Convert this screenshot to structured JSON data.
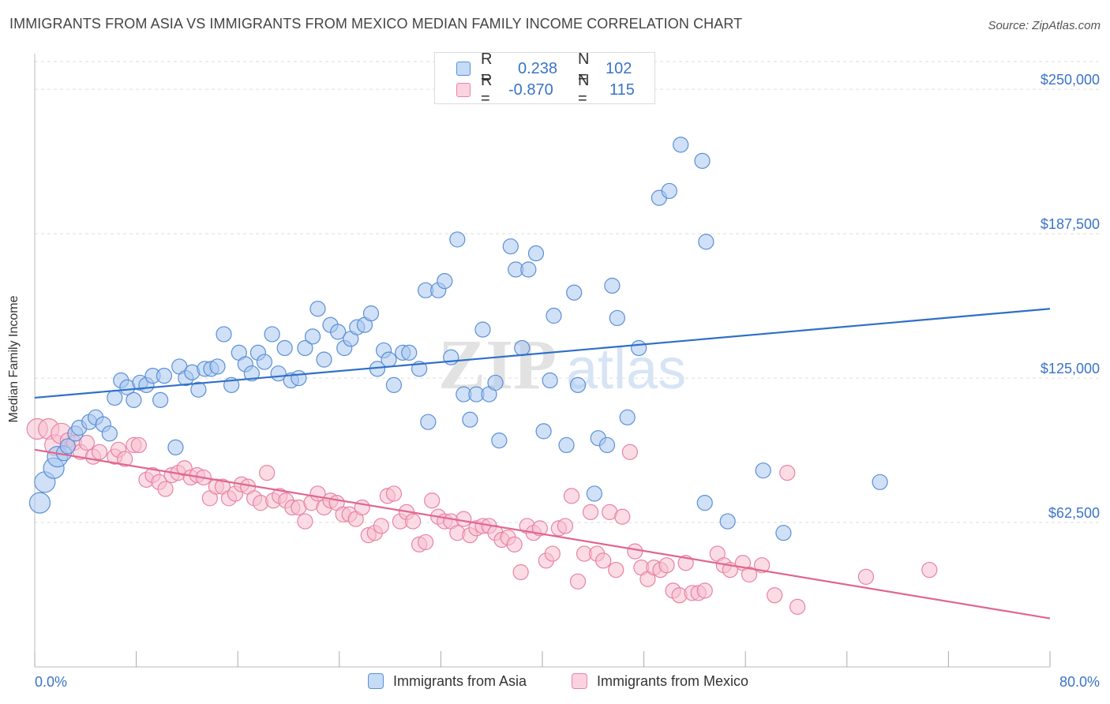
{
  "title": "IMMIGRANTS FROM ASIA VS IMMIGRANTS FROM MEXICO MEDIAN FAMILY INCOME CORRELATION CHART",
  "source": "Source: ZipAtlas.com",
  "watermark": {
    "zip": "ZIP",
    "atlas": "atlas"
  },
  "legend": {
    "r_label": "R =",
    "n_label": "N =",
    "asia": {
      "r": "0.238",
      "n": "102"
    },
    "mexico": {
      "r": "-0.870",
      "n": "115"
    }
  },
  "colors": {
    "asia_fill": "#a9c8f0",
    "asia_stroke": "#5b8fd6",
    "asia_line": "#2f6fc8",
    "mexico_fill": "#f7bfd0",
    "mexico_stroke": "#e882a6",
    "mexico_line": "#e06690",
    "tick_label": "#3a73c8",
    "grid": "#dddddd"
  },
  "chart_data": {
    "type": "scatter",
    "xlabel": "",
    "ylabel": "Median Family Income",
    "xlim": [
      0,
      80
    ],
    "ylim": [
      0,
      262000
    ],
    "x_tick_labels": {
      "min": "0.0%",
      "max": "80.0%"
    },
    "y_ticks": [
      {
        "value": 62500,
        "label": "$62,500"
      },
      {
        "value": 125000,
        "label": "$125,000"
      },
      {
        "value": 187500,
        "label": "$187,500"
      },
      {
        "value": 250000,
        "label": "$250,000"
      }
    ],
    "grid": true,
    "series": [
      {
        "name": "Immigrants from Asia",
        "trend": {
          "x": [
            0,
            80
          ],
          "y": [
            116500,
            155000
          ]
        },
        "points": [
          [
            0.4,
            71000
          ],
          [
            0.8,
            80000
          ],
          [
            1.5,
            86000
          ],
          [
            1.8,
            91000
          ],
          [
            2.3,
            92500
          ],
          [
            2.6,
            95500
          ],
          [
            3.2,
            101000
          ],
          [
            3.5,
            103500
          ],
          [
            4.3,
            106000
          ],
          [
            4.8,
            108000
          ],
          [
            5.4,
            105000
          ],
          [
            5.9,
            101000
          ],
          [
            6.3,
            116500
          ],
          [
            6.8,
            124000
          ],
          [
            7.3,
            121000
          ],
          [
            7.8,
            115500
          ],
          [
            8.3,
            123000
          ],
          [
            8.8,
            122000
          ],
          [
            9.3,
            126000
          ],
          [
            9.9,
            115500
          ],
          [
            10.2,
            126000
          ],
          [
            11.1,
            95000
          ],
          [
            11.4,
            130000
          ],
          [
            11.9,
            125000
          ],
          [
            12.4,
            127500
          ],
          [
            12.9,
            120000
          ],
          [
            13.4,
            129000
          ],
          [
            13.9,
            129000
          ],
          [
            14.4,
            130000
          ],
          [
            14.9,
            144000
          ],
          [
            15.5,
            122000
          ],
          [
            16.1,
            136000
          ],
          [
            16.6,
            131000
          ],
          [
            17.1,
            127000
          ],
          [
            17.6,
            136000
          ],
          [
            18.1,
            132000
          ],
          [
            18.7,
            144000
          ],
          [
            19.2,
            127000
          ],
          [
            19.7,
            138000
          ],
          [
            20.2,
            124000
          ],
          [
            20.8,
            125000
          ],
          [
            21.3,
            138000
          ],
          [
            21.9,
            143000
          ],
          [
            22.3,
            155000
          ],
          [
            22.8,
            133000
          ],
          [
            23.3,
            148000
          ],
          [
            23.9,
            145000
          ],
          [
            24.4,
            138000
          ],
          [
            24.9,
            142000
          ],
          [
            25.4,
            147000
          ],
          [
            26.0,
            148000
          ],
          [
            26.5,
            153000
          ],
          [
            27.0,
            129000
          ],
          [
            27.5,
            137000
          ],
          [
            27.9,
            133000
          ],
          [
            28.3,
            122000
          ],
          [
            29.0,
            136000
          ],
          [
            29.5,
            136000
          ],
          [
            30.3,
            129000
          ],
          [
            30.8,
            163000
          ],
          [
            31.0,
            106000
          ],
          [
            31.8,
            163000
          ],
          [
            32.3,
            167000
          ],
          [
            32.8,
            134000
          ],
          [
            33.3,
            185000
          ],
          [
            33.8,
            118000
          ],
          [
            34.3,
            107000
          ],
          [
            34.8,
            118000
          ],
          [
            35.3,
            146000
          ],
          [
            35.8,
            118000
          ],
          [
            36.3,
            123000
          ],
          [
            36.6,
            98000
          ],
          [
            37.5,
            182000
          ],
          [
            37.9,
            172000
          ],
          [
            38.4,
            138000
          ],
          [
            38.9,
            172000
          ],
          [
            39.5,
            179000
          ],
          [
            40.1,
            102000
          ],
          [
            40.6,
            124000
          ],
          [
            40.9,
            152000
          ],
          [
            41.9,
            96000
          ],
          [
            42.5,
            162000
          ],
          [
            42.8,
            122000
          ],
          [
            44.1,
            75000
          ],
          [
            44.4,
            99000
          ],
          [
            45.1,
            96000
          ],
          [
            45.5,
            165000
          ],
          [
            45.9,
            151000
          ],
          [
            46.7,
            108000
          ],
          [
            47.6,
            138000
          ],
          [
            49.2,
            203000
          ],
          [
            50.0,
            206000
          ],
          [
            50.9,
            226000
          ],
          [
            52.6,
            219000
          ],
          [
            52.8,
            71000
          ],
          [
            52.9,
            184000
          ],
          [
            54.6,
            63000
          ],
          [
            57.4,
            85000
          ],
          [
            59.0,
            58000
          ],
          [
            66.6,
            80000
          ]
        ]
      },
      {
        "name": "Immigrants from Mexico",
        "trend": {
          "x": [
            0,
            80
          ],
          "y": [
            94000,
            21000
          ]
        },
        "points": [
          [
            0.2,
            103000
          ],
          [
            1.1,
            103000
          ],
          [
            1.6,
            96000
          ],
          [
            2.1,
            101000
          ],
          [
            2.6,
            98000
          ],
          [
            3.1,
            97000
          ],
          [
            3.6,
            93000
          ],
          [
            4.1,
            97000
          ],
          [
            4.6,
            91000
          ],
          [
            5.1,
            93000
          ],
          [
            6.3,
            91000
          ],
          [
            6.6,
            94000
          ],
          [
            7.1,
            90000
          ],
          [
            7.8,
            96000
          ],
          [
            8.2,
            96000
          ],
          [
            8.8,
            81000
          ],
          [
            9.3,
            83000
          ],
          [
            9.8,
            80000
          ],
          [
            10.3,
            77000
          ],
          [
            10.8,
            83000
          ],
          [
            11.3,
            84000
          ],
          [
            11.8,
            86000
          ],
          [
            12.3,
            82000
          ],
          [
            12.8,
            83000
          ],
          [
            13.3,
            82000
          ],
          [
            13.8,
            73000
          ],
          [
            14.3,
            78000
          ],
          [
            14.8,
            78000
          ],
          [
            15.3,
            73000
          ],
          [
            15.8,
            75000
          ],
          [
            16.3,
            79000
          ],
          [
            16.8,
            78000
          ],
          [
            17.3,
            73000
          ],
          [
            17.8,
            71000
          ],
          [
            18.3,
            84000
          ],
          [
            18.8,
            72000
          ],
          [
            19.3,
            74000
          ],
          [
            19.8,
            72000
          ],
          [
            20.3,
            69000
          ],
          [
            20.8,
            69000
          ],
          [
            21.3,
            63000
          ],
          [
            21.8,
            71000
          ],
          [
            22.3,
            75000
          ],
          [
            22.8,
            69000
          ],
          [
            23.3,
            72000
          ],
          [
            23.8,
            71000
          ],
          [
            24.3,
            66000
          ],
          [
            24.8,
            66000
          ],
          [
            25.3,
            64000
          ],
          [
            25.8,
            69000
          ],
          [
            26.3,
            57000
          ],
          [
            26.8,
            58000
          ],
          [
            27.3,
            61000
          ],
          [
            27.8,
            74000
          ],
          [
            28.3,
            75000
          ],
          [
            28.8,
            63000
          ],
          [
            29.3,
            67000
          ],
          [
            29.8,
            63000
          ],
          [
            30.3,
            53000
          ],
          [
            30.8,
            54000
          ],
          [
            31.3,
            72000
          ],
          [
            31.8,
            65000
          ],
          [
            32.3,
            63000
          ],
          [
            32.8,
            63000
          ],
          [
            33.3,
            58000
          ],
          [
            33.8,
            64000
          ],
          [
            34.3,
            57000
          ],
          [
            34.8,
            60000
          ],
          [
            35.3,
            61000
          ],
          [
            35.8,
            61000
          ],
          [
            36.3,
            58000
          ],
          [
            36.8,
            55000
          ],
          [
            37.3,
            56000
          ],
          [
            37.8,
            53000
          ],
          [
            38.3,
            41000
          ],
          [
            38.8,
            61000
          ],
          [
            39.3,
            58000
          ],
          [
            39.8,
            60000
          ],
          [
            40.3,
            46000
          ],
          [
            40.8,
            49000
          ],
          [
            41.3,
            60000
          ],
          [
            41.8,
            61000
          ],
          [
            42.3,
            74000
          ],
          [
            42.8,
            37000
          ],
          [
            43.3,
            49000
          ],
          [
            43.8,
            67000
          ],
          [
            44.3,
            49000
          ],
          [
            44.8,
            46000
          ],
          [
            45.3,
            67000
          ],
          [
            45.8,
            42000
          ],
          [
            46.3,
            65000
          ],
          [
            46.9,
            93000
          ],
          [
            47.3,
            50000
          ],
          [
            47.8,
            43000
          ],
          [
            48.3,
            38000
          ],
          [
            48.8,
            43000
          ],
          [
            49.3,
            42000
          ],
          [
            49.8,
            44000
          ],
          [
            50.3,
            33000
          ],
          [
            50.8,
            31000
          ],
          [
            51.3,
            45000
          ],
          [
            51.8,
            32000
          ],
          [
            52.3,
            32000
          ],
          [
            52.8,
            33000
          ],
          [
            53.8,
            49000
          ],
          [
            54.3,
            44000
          ],
          [
            54.8,
            42000
          ],
          [
            55.8,
            45000
          ],
          [
            56.3,
            40000
          ],
          [
            57.3,
            44000
          ],
          [
            58.3,
            31000
          ],
          [
            59.3,
            84000
          ],
          [
            60.1,
            26000
          ],
          [
            65.5,
            39000
          ],
          [
            70.5,
            42000
          ]
        ]
      }
    ]
  }
}
